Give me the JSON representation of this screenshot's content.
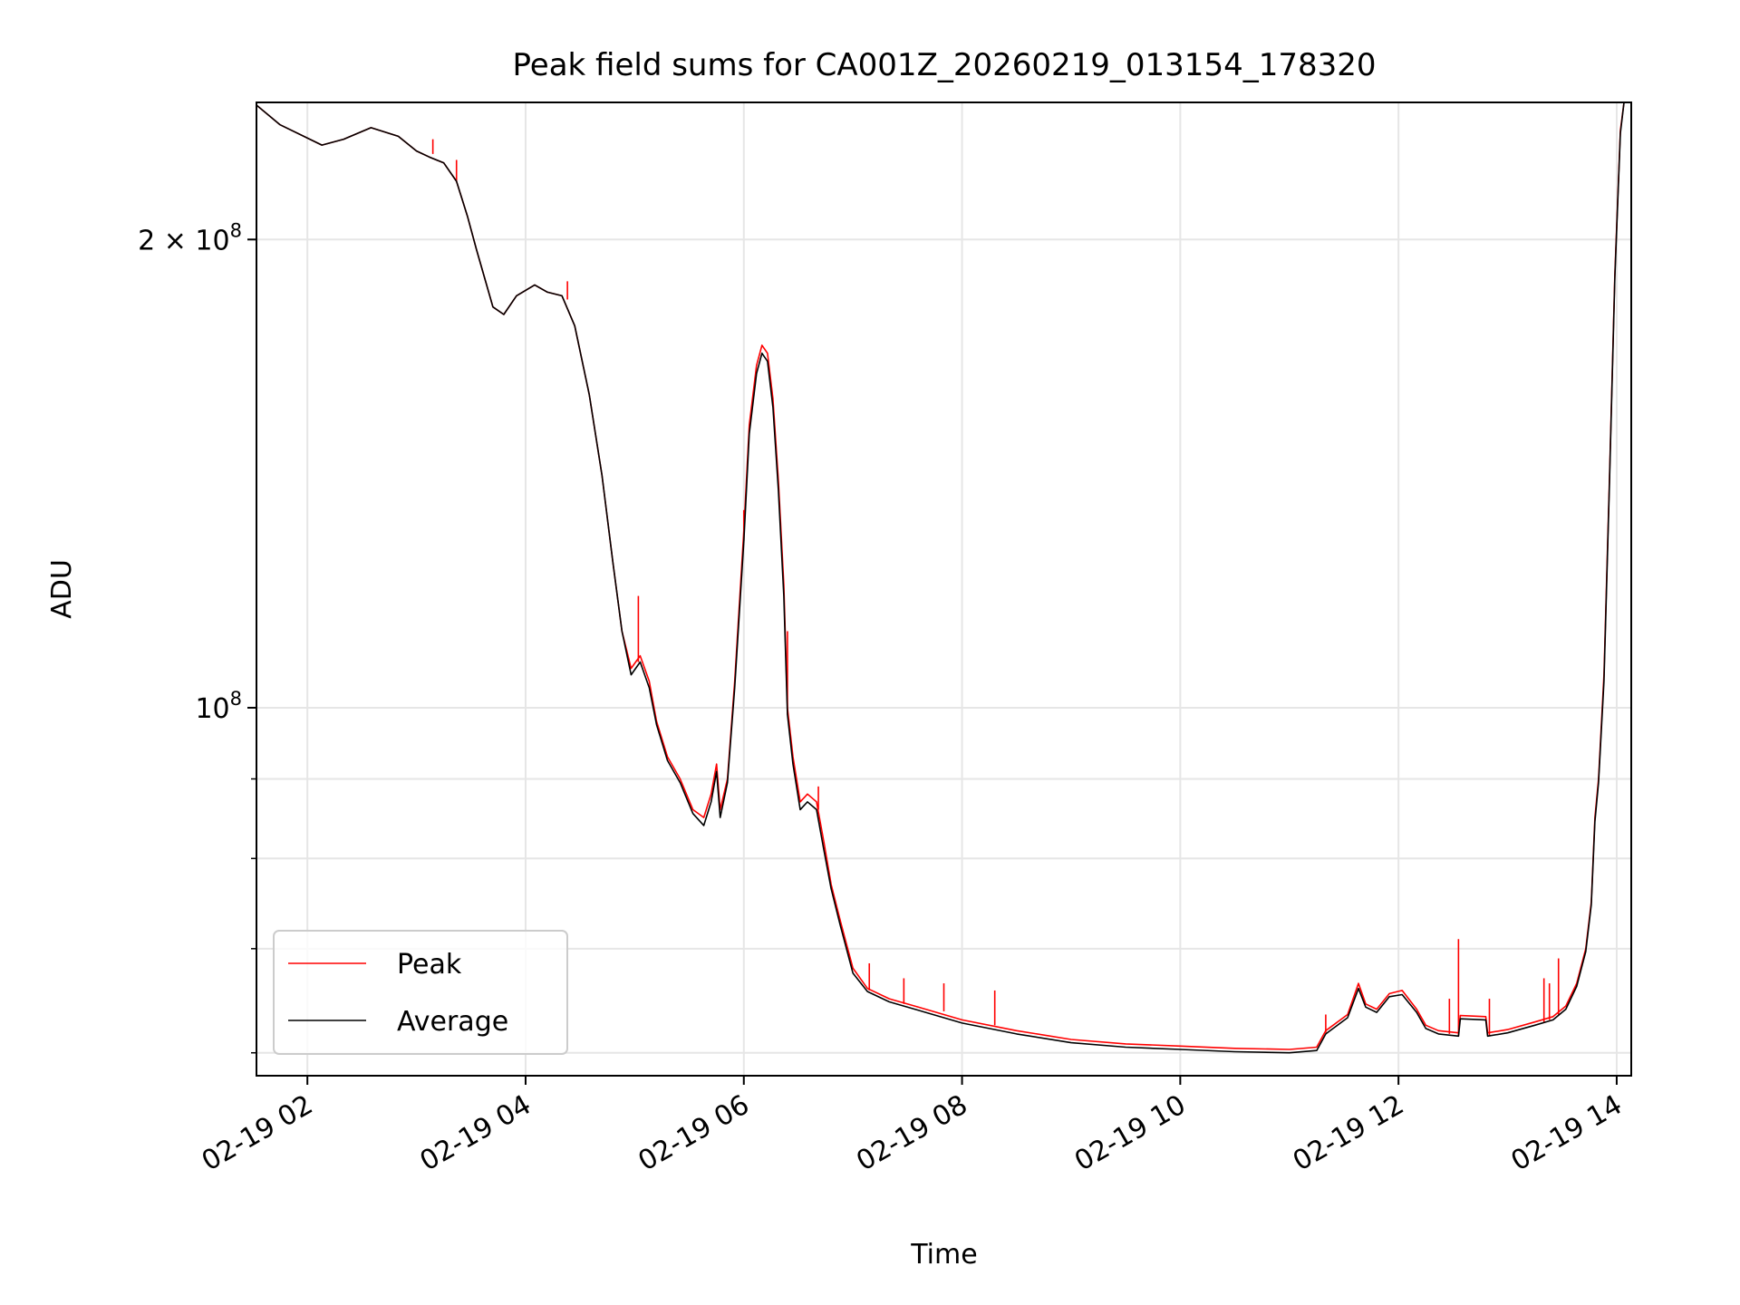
{
  "chart_data": {
    "type": "line",
    "title": "Peak field sums for CA001Z_20260219_013154_178320",
    "xlabel": "Time",
    "ylabel": "ADU",
    "y_scale": "log",
    "x_tick_labels": [
      "02-19 02",
      "02-19 04",
      "02-19 06",
      "02-19 08",
      "02-19 10",
      "02-19 12",
      "02-19 14"
    ],
    "x_ticks": [
      "2026-02-19T02:00",
      "2026-02-19T04:00",
      "2026-02-19T06:00",
      "2026-02-19T08:00",
      "2026-02-19T10:00",
      "2026-02-19T12:00",
      "2026-02-19T14:00"
    ],
    "y_tick_labels": [
      {
        "value": 200000000,
        "base": "2 × 10",
        "exp": "8"
      },
      {
        "value": 100000000,
        "base": "10",
        "exp": "8"
      }
    ],
    "y_minor_ticks": [
      60000000,
      70000000,
      80000000,
      90000000
    ],
    "xlim": [
      "2026-02-19T01:32",
      "2026-02-19T14:08"
    ],
    "ylim": [
      58000000,
      245000000
    ],
    "grid": true,
    "legend_position": "lower-left",
    "series": [
      {
        "name": "Peak",
        "color": "#ff0000",
        "points": [
          [
            "2026-02-19T01:32",
            244000000
          ],
          [
            "2026-02-19T01:45",
            237000000
          ],
          [
            "2026-02-19T02:08",
            230000000
          ],
          [
            "2026-02-19T02:20",
            232000000
          ],
          [
            "2026-02-19T02:35",
            236000000
          ],
          [
            "2026-02-19T02:50",
            233000000
          ],
          [
            "2026-02-19T03:00",
            228000000
          ],
          [
            "2026-02-19T03:07",
            226000000
          ],
          [
            "2026-02-19T03:15",
            224000000
          ],
          [
            "2026-02-19T03:22",
            218000000
          ],
          [
            "2026-02-19T03:28",
            207000000
          ],
          [
            "2026-02-19T03:33",
            197000000
          ],
          [
            "2026-02-19T03:38",
            188000000
          ],
          [
            "2026-02-19T03:42",
            181000000
          ],
          [
            "2026-02-19T03:48",
            179000000
          ],
          [
            "2026-02-19T03:55",
            184000000
          ],
          [
            "2026-02-19T04:05",
            187000000
          ],
          [
            "2026-02-19T04:12",
            185000000
          ],
          [
            "2026-02-19T04:20",
            184000000
          ],
          [
            "2026-02-19T04:27",
            176000000
          ],
          [
            "2026-02-19T04:35",
            159000000
          ],
          [
            "2026-02-19T04:42",
            141000000
          ],
          [
            "2026-02-19T04:48",
            124000000
          ],
          [
            "2026-02-19T04:53",
            112000000
          ],
          [
            "2026-02-19T04:58",
            106000000
          ],
          [
            "2026-02-19T05:03",
            108000000
          ],
          [
            "2026-02-19T05:08",
            104000000
          ],
          [
            "2026-02-19T05:12",
            98000000
          ],
          [
            "2026-02-19T05:18",
            93000000
          ],
          [
            "2026-02-19T05:25",
            90000000
          ],
          [
            "2026-02-19T05:32",
            86000000
          ],
          [
            "2026-02-19T05:38",
            85000000
          ],
          [
            "2026-02-19T05:42",
            88000000
          ],
          [
            "2026-02-19T05:45",
            92000000
          ],
          [
            "2026-02-19T05:47",
            86000000
          ],
          [
            "2026-02-19T05:51",
            90000000
          ],
          [
            "2026-02-19T05:55",
            104000000
          ],
          [
            "2026-02-19T06:00",
            130000000
          ],
          [
            "2026-02-19T06:03",
            152000000
          ],
          [
            "2026-02-19T06:07",
            166000000
          ],
          [
            "2026-02-19T06:10",
            171000000
          ],
          [
            "2026-02-19T06:13",
            169000000
          ],
          [
            "2026-02-19T06:16",
            158000000
          ],
          [
            "2026-02-19T06:19",
            140000000
          ],
          [
            "2026-02-19T06:22",
            120000000
          ],
          [
            "2026-02-19T06:24",
            100000000
          ],
          [
            "2026-02-19T06:27",
            93000000
          ],
          [
            "2026-02-19T06:31",
            87000000
          ],
          [
            "2026-02-19T06:35",
            88000000
          ],
          [
            "2026-02-19T06:40",
            87000000
          ],
          [
            "2026-02-19T06:44",
            82000000
          ],
          [
            "2026-02-19T06:48",
            77000000
          ],
          [
            "2026-02-19T06:53",
            73000000
          ],
          [
            "2026-02-19T07:00",
            68000000
          ],
          [
            "2026-02-19T07:08",
            66000000
          ],
          [
            "2026-02-19T07:20",
            65000000
          ],
          [
            "2026-02-19T07:40",
            64000000
          ],
          [
            "2026-02-19T08:00",
            63000000
          ],
          [
            "2026-02-19T08:30",
            62000000
          ],
          [
            "2026-02-19T09:00",
            61200000
          ],
          [
            "2026-02-19T09:30",
            60800000
          ],
          [
            "2026-02-19T10:00",
            60600000
          ],
          [
            "2026-02-19T10:30",
            60400000
          ],
          [
            "2026-02-19T11:00",
            60300000
          ],
          [
            "2026-02-19T11:15",
            60500000
          ],
          [
            "2026-02-19T11:20",
            62000000
          ],
          [
            "2026-02-19T11:32",
            63500000
          ],
          [
            "2026-02-19T11:38",
            66500000
          ],
          [
            "2026-02-19T11:42",
            64500000
          ],
          [
            "2026-02-19T11:48",
            64000000
          ],
          [
            "2026-02-19T11:55",
            65500000
          ],
          [
            "2026-02-19T12:02",
            65800000
          ],
          [
            "2026-02-19T12:10",
            64000000
          ],
          [
            "2026-02-19T12:15",
            62500000
          ],
          [
            "2026-02-19T12:22",
            62000000
          ],
          [
            "2026-02-19T12:33",
            61800000
          ],
          [
            "2026-02-19T12:34",
            63400000
          ],
          [
            "2026-02-19T12:48",
            63300000
          ],
          [
            "2026-02-19T12:49",
            61800000
          ],
          [
            "2026-02-19T13:00",
            62100000
          ],
          [
            "2026-02-19T13:15",
            62800000
          ],
          [
            "2026-02-19T13:25",
            63300000
          ],
          [
            "2026-02-19T13:32",
            64300000
          ],
          [
            "2026-02-19T13:38",
            66500000
          ],
          [
            "2026-02-19T13:43",
            70000000
          ],
          [
            "2026-02-19T13:46",
            75000000
          ],
          [
            "2026-02-19T13:48",
            85000000
          ],
          [
            "2026-02-19T13:50",
            90000000
          ],
          [
            "2026-02-19T13:53",
            105000000
          ],
          [
            "2026-02-19T13:56",
            140000000
          ],
          [
            "2026-02-19T13:59",
            190000000
          ],
          [
            "2026-02-19T14:02",
            235000000
          ],
          [
            "2026-02-19T14:04",
            245000000
          ]
        ]
      },
      {
        "name": "Average",
        "color": "#000000",
        "points": [
          [
            "2026-02-19T01:32",
            244000000
          ],
          [
            "2026-02-19T01:45",
            237000000
          ],
          [
            "2026-02-19T02:08",
            230000000
          ],
          [
            "2026-02-19T02:20",
            232000000
          ],
          [
            "2026-02-19T02:35",
            236000000
          ],
          [
            "2026-02-19T02:50",
            233000000
          ],
          [
            "2026-02-19T03:00",
            228000000
          ],
          [
            "2026-02-19T03:07",
            226000000
          ],
          [
            "2026-02-19T03:15",
            224000000
          ],
          [
            "2026-02-19T03:22",
            218000000
          ],
          [
            "2026-02-19T03:28",
            207000000
          ],
          [
            "2026-02-19T03:33",
            197000000
          ],
          [
            "2026-02-19T03:38",
            188000000
          ],
          [
            "2026-02-19T03:42",
            181000000
          ],
          [
            "2026-02-19T03:48",
            179000000
          ],
          [
            "2026-02-19T03:55",
            184000000
          ],
          [
            "2026-02-19T04:05",
            187000000
          ],
          [
            "2026-02-19T04:12",
            185000000
          ],
          [
            "2026-02-19T04:20",
            184000000
          ],
          [
            "2026-02-19T04:27",
            176000000
          ],
          [
            "2026-02-19T04:35",
            159000000
          ],
          [
            "2026-02-19T04:42",
            141000000
          ],
          [
            "2026-02-19T04:48",
            124000000
          ],
          [
            "2026-02-19T04:53",
            112000000
          ],
          [
            "2026-02-19T04:58",
            105000000
          ],
          [
            "2026-02-19T05:03",
            107000000
          ],
          [
            "2026-02-19T05:08",
            103000000
          ],
          [
            "2026-02-19T05:12",
            97500000
          ],
          [
            "2026-02-19T05:18",
            92500000
          ],
          [
            "2026-02-19T05:25",
            89500000
          ],
          [
            "2026-02-19T05:32",
            85500000
          ],
          [
            "2026-02-19T05:38",
            84000000
          ],
          [
            "2026-02-19T05:42",
            87000000
          ],
          [
            "2026-02-19T05:45",
            91000000
          ],
          [
            "2026-02-19T05:47",
            85000000
          ],
          [
            "2026-02-19T05:51",
            89500000
          ],
          [
            "2026-02-19T05:55",
            103000000
          ],
          [
            "2026-02-19T06:00",
            128000000
          ],
          [
            "2026-02-19T06:03",
            150000000
          ],
          [
            "2026-02-19T06:07",
            164000000
          ],
          [
            "2026-02-19T06:10",
            169000000
          ],
          [
            "2026-02-19T06:13",
            167000000
          ],
          [
            "2026-02-19T06:16",
            156000000
          ],
          [
            "2026-02-19T06:19",
            138000000
          ],
          [
            "2026-02-19T06:22",
            118000000
          ],
          [
            "2026-02-19T06:24",
            99000000
          ],
          [
            "2026-02-19T06:27",
            92000000
          ],
          [
            "2026-02-19T06:31",
            86000000
          ],
          [
            "2026-02-19T06:35",
            87000000
          ],
          [
            "2026-02-19T06:40",
            86000000
          ],
          [
            "2026-02-19T06:44",
            81000000
          ],
          [
            "2026-02-19T06:48",
            76500000
          ],
          [
            "2026-02-19T06:53",
            72500000
          ],
          [
            "2026-02-19T07:00",
            67500000
          ],
          [
            "2026-02-19T07:08",
            65700000
          ],
          [
            "2026-02-19T07:20",
            64700000
          ],
          [
            "2026-02-19T07:40",
            63700000
          ],
          [
            "2026-02-19T08:00",
            62700000
          ],
          [
            "2026-02-19T08:30",
            61700000
          ],
          [
            "2026-02-19T09:00",
            60900000
          ],
          [
            "2026-02-19T09:30",
            60500000
          ],
          [
            "2026-02-19T10:00",
            60300000
          ],
          [
            "2026-02-19T10:30",
            60100000
          ],
          [
            "2026-02-19T11:00",
            60000000
          ],
          [
            "2026-02-19T11:15",
            60200000
          ],
          [
            "2026-02-19T11:20",
            61700000
          ],
          [
            "2026-02-19T11:32",
            63200000
          ],
          [
            "2026-02-19T11:38",
            66000000
          ],
          [
            "2026-02-19T11:42",
            64200000
          ],
          [
            "2026-02-19T11:48",
            63700000
          ],
          [
            "2026-02-19T11:55",
            65200000
          ],
          [
            "2026-02-19T12:02",
            65400000
          ],
          [
            "2026-02-19T12:10",
            63700000
          ],
          [
            "2026-02-19T12:15",
            62200000
          ],
          [
            "2026-02-19T12:22",
            61700000
          ],
          [
            "2026-02-19T12:33",
            61500000
          ],
          [
            "2026-02-19T12:34",
            63100000
          ],
          [
            "2026-02-19T12:48",
            63000000
          ],
          [
            "2026-02-19T12:49",
            61500000
          ],
          [
            "2026-02-19T13:00",
            61800000
          ],
          [
            "2026-02-19T13:15",
            62500000
          ],
          [
            "2026-02-19T13:25",
            63000000
          ],
          [
            "2026-02-19T13:32",
            64000000
          ],
          [
            "2026-02-19T13:38",
            66200000
          ],
          [
            "2026-02-19T13:43",
            69700000
          ],
          [
            "2026-02-19T13:46",
            74700000
          ],
          [
            "2026-02-19T13:48",
            84500000
          ],
          [
            "2026-02-19T13:50",
            89500000
          ],
          [
            "2026-02-19T13:53",
            104000000
          ],
          [
            "2026-02-19T13:56",
            139000000
          ],
          [
            "2026-02-19T13:59",
            189000000
          ],
          [
            "2026-02-19T14:02",
            234000000
          ],
          [
            "2026-02-19T14:04",
            245000000
          ]
        ]
      }
    ],
    "spikes": {
      "series": "Peak",
      "points": [
        [
          "2026-02-19T03:09",
          227000000,
          232000000
        ],
        [
          "2026-02-19T03:22",
          218000000,
          225000000
        ],
        [
          "2026-02-19T04:23",
          183000000,
          188000000
        ],
        [
          "2026-02-19T05:02",
          107000000,
          118000000
        ],
        [
          "2026-02-19T06:00",
          128000000,
          134000000
        ],
        [
          "2026-02-19T06:24",
          99000000,
          112000000
        ],
        [
          "2026-02-19T06:41",
          86000000,
          89000000
        ],
        [
          "2026-02-19T07:09",
          65800000,
          68500000
        ],
        [
          "2026-02-19T07:28",
          64500000,
          67000000
        ],
        [
          "2026-02-19T07:50",
          63800000,
          66500000
        ],
        [
          "2026-02-19T08:18",
          62500000,
          65800000
        ],
        [
          "2026-02-19T11:20",
          61800000,
          63500000
        ],
        [
          "2026-02-19T12:28",
          61700000,
          65000000
        ],
        [
          "2026-02-19T12:33",
          61500000,
          71000000
        ],
        [
          "2026-02-19T12:50",
          61500000,
          65000000
        ],
        [
          "2026-02-19T13:20",
          62700000,
          67000000
        ],
        [
          "2026-02-19T13:23",
          63000000,
          66500000
        ],
        [
          "2026-02-19T13:28",
          63500000,
          69000000
        ]
      ]
    }
  }
}
